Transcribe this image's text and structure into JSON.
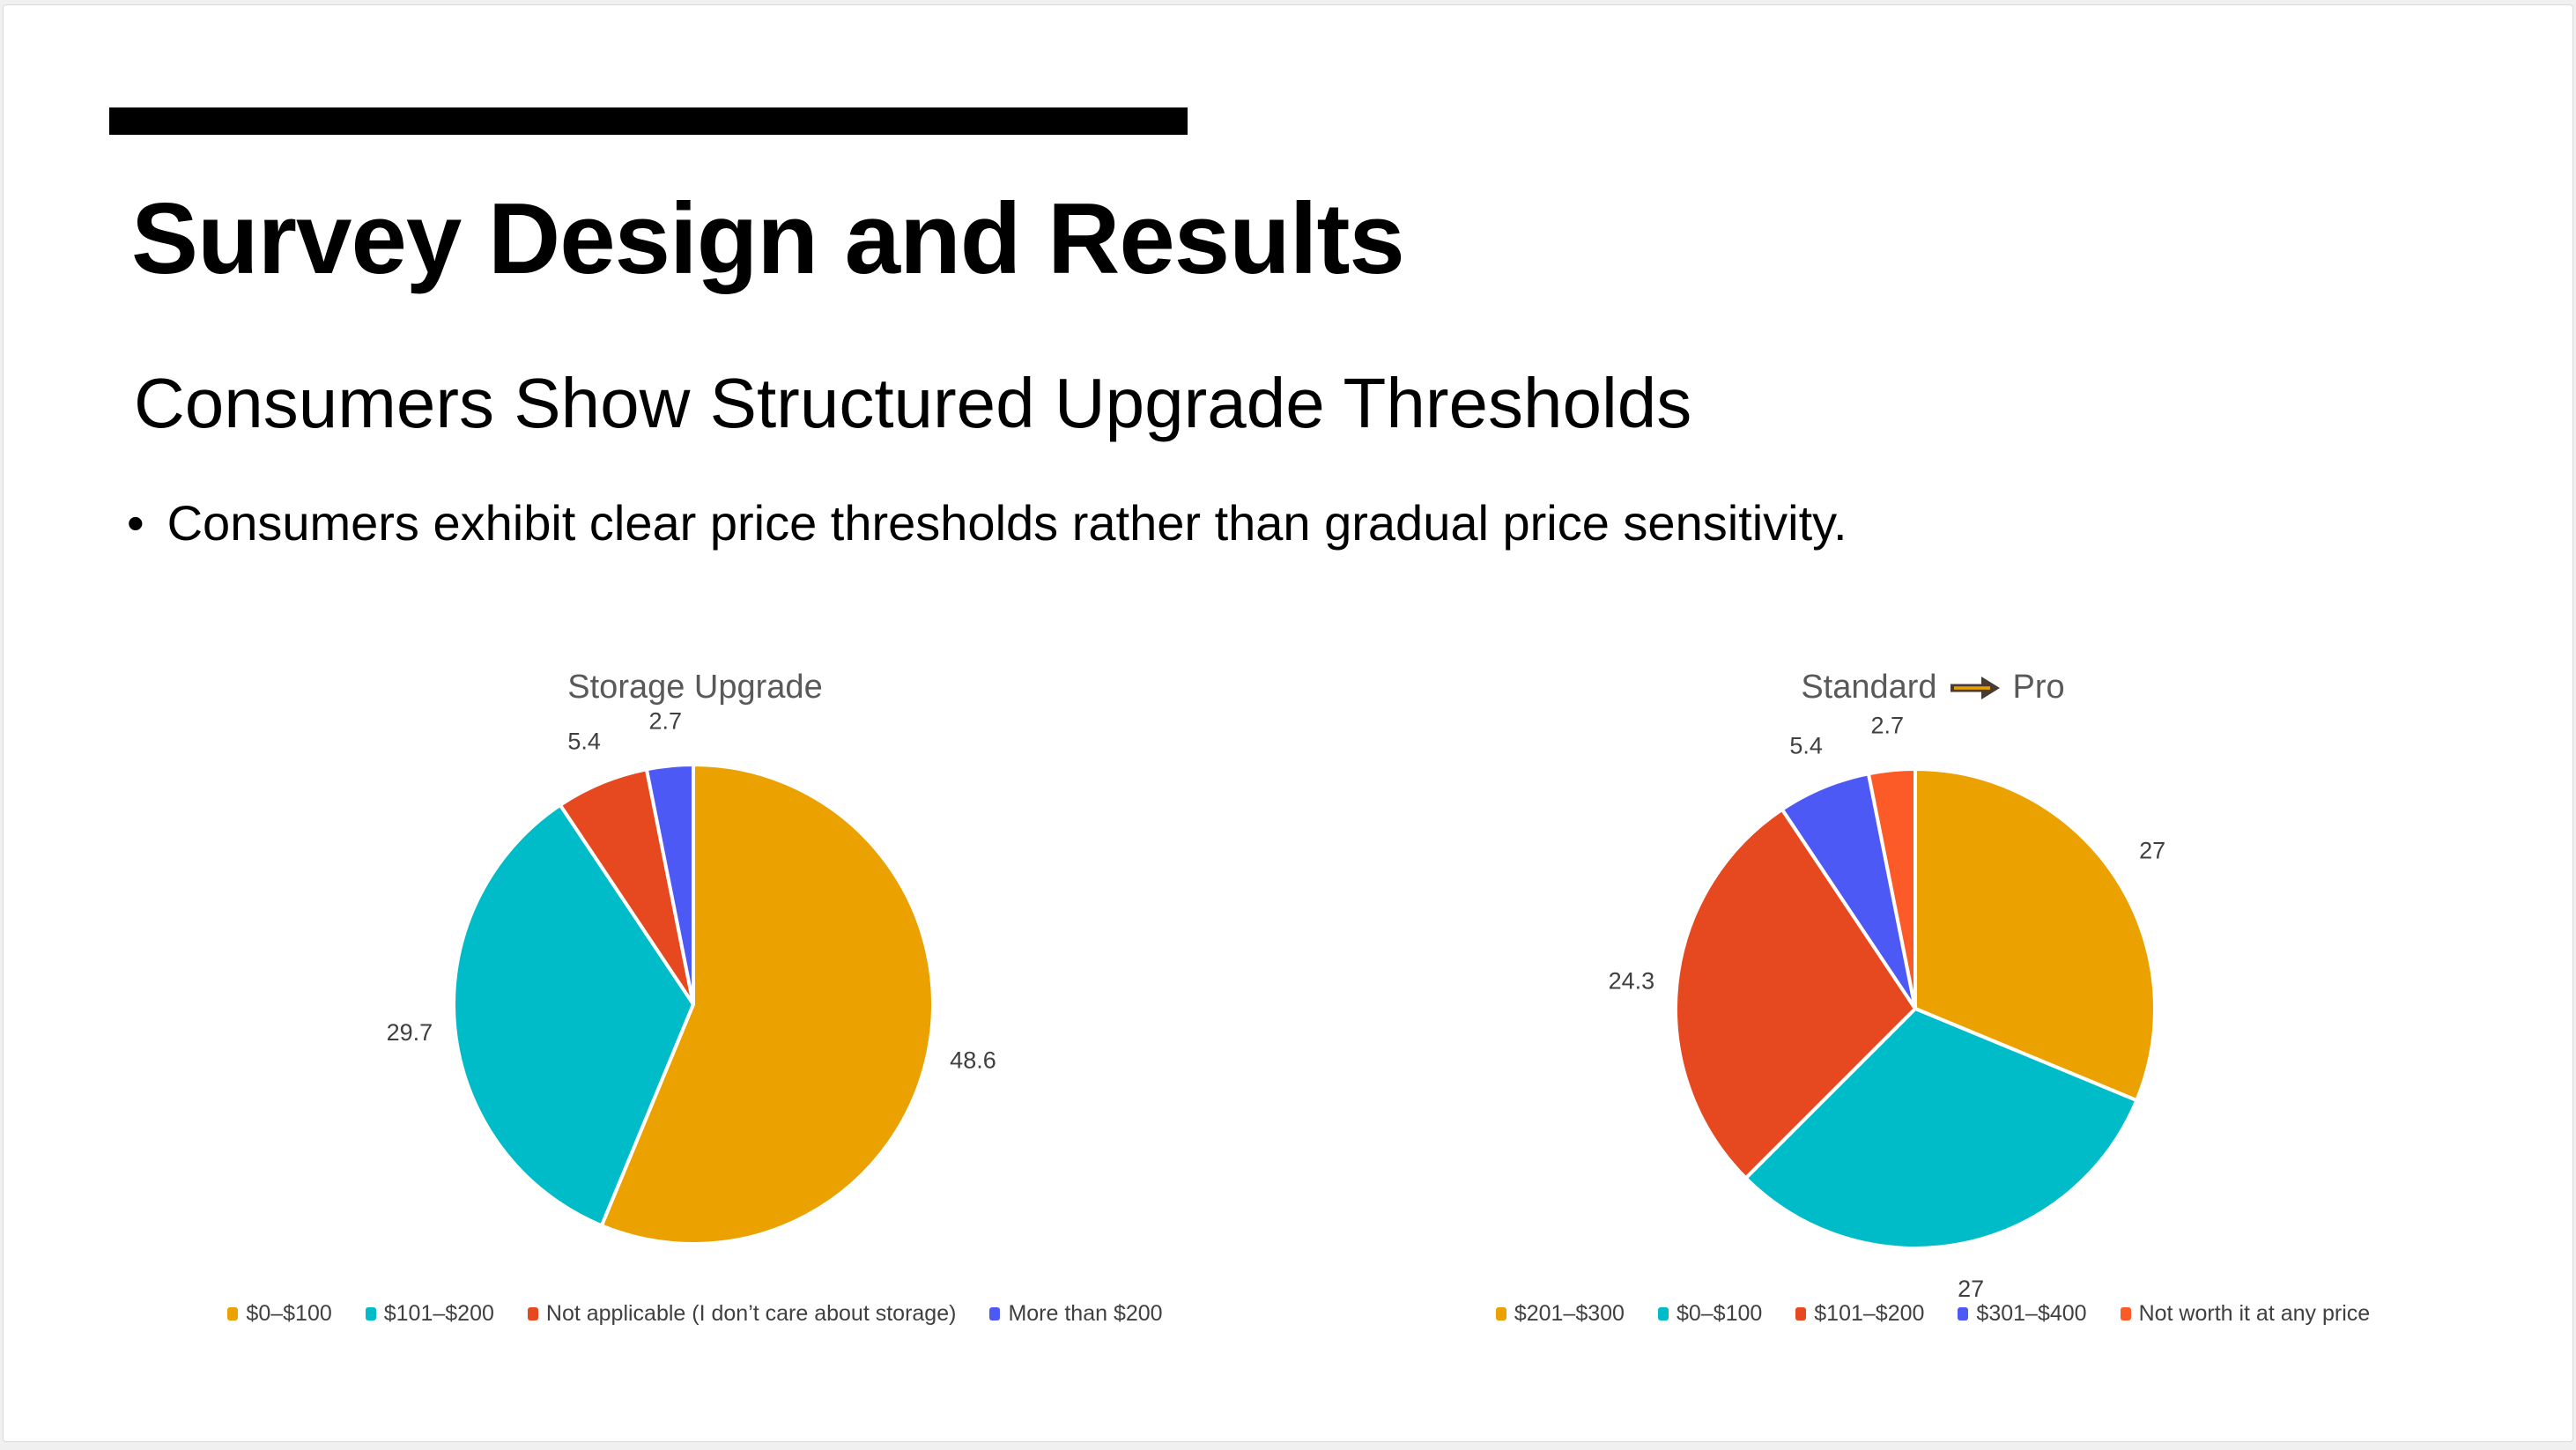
{
  "slide": {
    "accent_bar_color": "#000000",
    "title": "Survey Design and Results",
    "subtitle": "Consumers Show Structured Upgrade Thresholds",
    "bullet_marker": "•",
    "bullet_text": "Consumers exhibit clear price thresholds rather than gradual price sensitivity."
  },
  "style": {
    "canvas_background": "#F0F0F0",
    "slide_background": "#FFFFFF",
    "slide_border": "#D9D9D9",
    "chart_title_color": "#595959",
    "value_label_color": "#3F3F3F",
    "legend_text_color": "#404040",
    "slice_border_color": "#FFFFFF",
    "arrow_body_color": "#4A3B30",
    "arrow_stripe_color": "#E8A000"
  },
  "chart_data": [
    {
      "type": "pie",
      "title": "Storage Upgrade",
      "legend_position": "bottom",
      "start_angle_deg": 0,
      "direction": "clockwise",
      "slices": [
        {
          "label": "$0–$100",
          "value": 48.6,
          "display": "48.6",
          "color": "#EBA100"
        },
        {
          "label": "$101–$200",
          "value": 29.7,
          "display": "29.7",
          "color": "#00BCC8"
        },
        {
          "label": "Not applicable (I don’t care about storage)",
          "value": 5.4,
          "display": "5.4",
          "color": "#E6491F"
        },
        {
          "label": "More than $200",
          "value": 2.7,
          "display": "2.7",
          "color": "#4D59F5"
        }
      ]
    },
    {
      "type": "pie",
      "title_left": "Standard",
      "title_right": "Pro",
      "title_arrow_icon": "right-arrow",
      "legend_position": "bottom",
      "start_angle_deg": 0,
      "direction": "clockwise",
      "slices": [
        {
          "label": "$201–$300",
          "value": 27,
          "display": "27",
          "color": "#EBA100"
        },
        {
          "label": "$0–$100",
          "value": 27,
          "display": "27",
          "color": "#00BCC8"
        },
        {
          "label": "$101–$200",
          "value": 24.3,
          "display": "24.3",
          "color": "#E6491F"
        },
        {
          "label": "$301–$400",
          "value": 5.4,
          "display": "5.4",
          "color": "#4D59F5"
        },
        {
          "label": "Not worth it at any price",
          "value": 2.7,
          "display": "2.7",
          "color": "#FC5A26"
        }
      ]
    }
  ]
}
